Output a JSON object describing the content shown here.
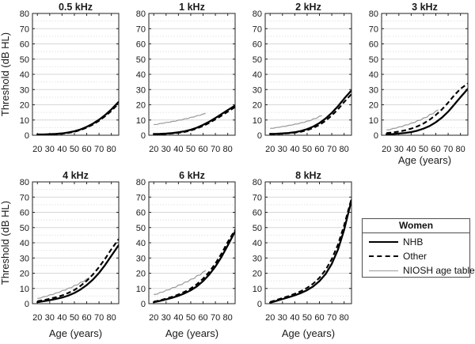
{
  "colors": {
    "background": "#ffffff",
    "curve_black": "#000000",
    "niosh_gray": "#999999",
    "frame": "#222222",
    "grid_major": "#d7d7d7",
    "grid_minor": "#e4e4e4",
    "text": "#1a1a1a"
  },
  "legend": {
    "title": "Women",
    "entries": [
      {
        "label": "NHB",
        "line": "solid-thick",
        "color": "#000000"
      },
      {
        "label": "Other",
        "line": "dashed",
        "color": "#000000"
      },
      {
        "label": "NIOSH age table",
        "line": "thin-solid",
        "color": "#999999"
      }
    ]
  },
  "chart_data": {
    "type": "line",
    "figure_title": "",
    "xlabel": "Age (years)",
    "ylabel": "Threshold (dB HL)",
    "xlim": [
      16,
      86
    ],
    "ylim": [
      0,
      80
    ],
    "x_ticks": [
      20,
      30,
      40,
      50,
      60,
      70,
      80
    ],
    "y_ticks": [
      0,
      10,
      20,
      30,
      40,
      50,
      60,
      70,
      80
    ],
    "grid": "horizontal major solid at 10 dB steps, minor dotted at 5 dB steps, no vertical grid",
    "legend_position": "fourth cell of bottom row",
    "x": [
      20,
      25,
      30,
      35,
      40,
      45,
      50,
      55,
      60,
      65,
      70,
      75,
      80,
      86
    ],
    "niosh_x": [
      20,
      25,
      30,
      35,
      40,
      45,
      50,
      55,
      60,
      62
    ],
    "panels": [
      {
        "title": "0.5 kHz",
        "row": 0,
        "col": 0,
        "NHB": [
          0.5,
          0.5,
          0.7,
          0.9,
          1.2,
          1.8,
          2.6,
          3.8,
          5.5,
          7.6,
          10.2,
          13.3,
          17.0,
          22.0
        ],
        "Other": [
          0.3,
          0.4,
          0.5,
          0.7,
          1.0,
          1.5,
          2.3,
          3.4,
          5.0,
          7.0,
          9.5,
          12.5,
          16.0,
          21.0
        ],
        "NIOSH": null
      },
      {
        "title": "1 kHz",
        "row": 0,
        "col": 1,
        "NHB": [
          0.8,
          0.9,
          1.1,
          1.4,
          1.9,
          2.6,
          3.6,
          5.0,
          6.8,
          8.9,
          11.3,
          13.9,
          16.5,
          19.5
        ],
        "Other": [
          0.6,
          0.7,
          0.9,
          1.2,
          1.6,
          2.2,
          3.1,
          4.4,
          6.1,
          8.1,
          10.4,
          12.9,
          15.5,
          18.5
        ],
        "NIOSH": [
          7.0,
          7.7,
          8.4,
          9.1,
          9.9,
          10.8,
          11.8,
          12.9,
          14.0,
          14.5
        ]
      },
      {
        "title": "2 kHz",
        "row": 0,
        "col": 2,
        "NHB": [
          0.9,
          1.0,
          1.2,
          1.5,
          2.0,
          2.8,
          4.0,
          5.7,
          8.0,
          11.0,
          14.7,
          19.0,
          24.0,
          29.5
        ],
        "Other": [
          0.7,
          0.8,
          1.0,
          1.3,
          1.7,
          2.3,
          3.3,
          4.8,
          6.8,
          9.5,
          13.0,
          17.0,
          21.8,
          27.0
        ],
        "NIOSH": [
          4.5,
          5.1,
          5.8,
          6.5,
          7.3,
          8.2,
          9.3,
          10.8,
          12.5,
          13.0
        ]
      },
      {
        "title": "3 kHz",
        "row": 0,
        "col": 3,
        "NHB": [
          0.6,
          0.8,
          1.1,
          1.5,
          2.1,
          3.0,
          4.3,
          6.1,
          8.5,
          11.6,
          15.5,
          20.2,
          25.0,
          30.5
        ],
        "Other": [
          1.4,
          1.8,
          2.4,
          3.2,
          4.3,
          5.8,
          7.7,
          10.2,
          13.3,
          17.0,
          21.4,
          26.3,
          30.5,
          34.0
        ],
        "NIOSH": [
          3.5,
          4.4,
          5.5,
          6.7,
          8.0,
          9.6,
          11.4,
          13.6,
          16.0,
          16.8
        ]
      },
      {
        "title": "4 kHz",
        "row": 1,
        "col": 0,
        "NHB": [
          1.0,
          1.6,
          2.3,
          3.1,
          4.0,
          5.3,
          7.0,
          9.3,
          12.2,
          15.8,
          20.2,
          25.5,
          31.5,
          38.5
        ],
        "Other": [
          1.6,
          2.3,
          3.2,
          4.2,
          5.4,
          7.0,
          9.0,
          11.7,
          15.0,
          19.1,
          24.0,
          29.6,
          35.8,
          42.5
        ],
        "NIOSH": [
          3.5,
          4.6,
          5.8,
          7.1,
          8.6,
          10.2,
          12.0,
          14.1,
          16.3,
          17.2
        ]
      },
      {
        "title": "6 kHz",
        "row": 1,
        "col": 1,
        "NHB": [
          1.0,
          1.8,
          2.8,
          3.9,
          5.2,
          6.8,
          8.8,
          11.4,
          14.8,
          19.1,
          24.4,
          30.8,
          38.3,
          47.5
        ],
        "Other": [
          1.3,
          2.2,
          3.3,
          4.5,
          6.0,
          7.8,
          10.0,
          12.8,
          16.4,
          20.9,
          26.4,
          33.0,
          40.5,
          48.5
        ],
        "NIOSH": [
          6.0,
          7.4,
          8.9,
          10.5,
          12.2,
          14.1,
          16.1,
          18.4,
          20.9,
          22.0
        ]
      },
      {
        "title": "8 kHz",
        "row": 1,
        "col": 2,
        "NHB": [
          0.6,
          1.8,
          3.0,
          4.2,
          5.5,
          7.0,
          8.9,
          11.4,
          14.8,
          19.5,
          26.2,
          35.5,
          48.5,
          68.0
        ],
        "Other": [
          1.1,
          2.4,
          3.7,
          5.0,
          6.5,
          8.2,
          10.4,
          13.2,
          17.0,
          22.2,
          29.3,
          38.8,
          51.5,
          69.0
        ],
        "NIOSH": null
      }
    ]
  }
}
